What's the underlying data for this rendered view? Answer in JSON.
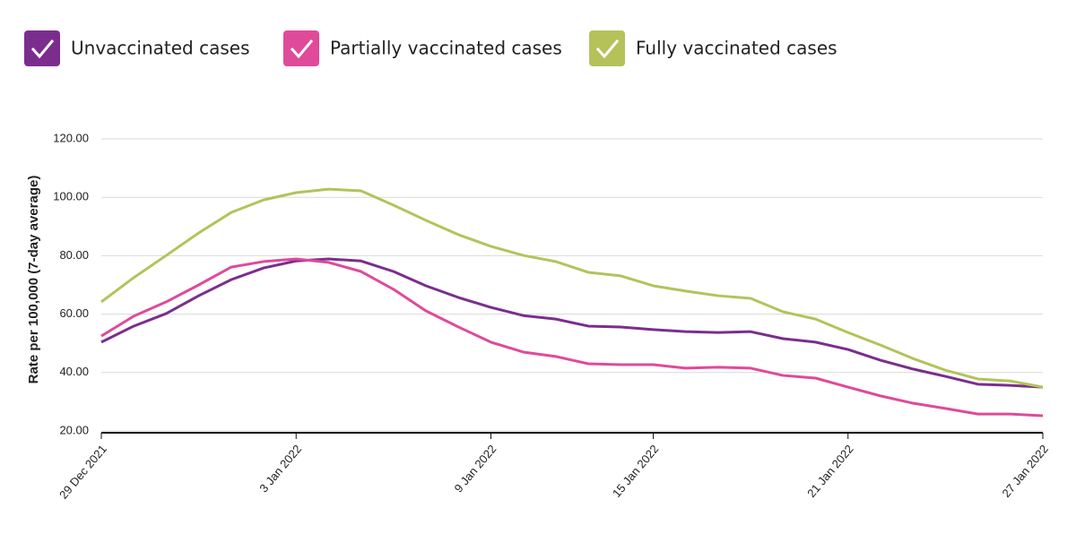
{
  "chart_data": {
    "type": "line",
    "y_label": "Rate per 100,000 (7-day average)",
    "categories": [
      "29 Dec 2021",
      null,
      null,
      null,
      null,
      null,
      "3 Jan 2022",
      null,
      null,
      null,
      null,
      null,
      "9 Jan 2022",
      null,
      null,
      null,
      null,
      "15 Jan 2022",
      null,
      null,
      null,
      null,
      null,
      "21 Jan 2022",
      null,
      null,
      null,
      null,
      null,
      "27 Jan 2022"
    ],
    "series": [
      {
        "name": "Unvaccinated cases",
        "color": "#7b2d8e",
        "values": [
          50.4,
          55.9,
          60.2,
          66.3,
          71.8,
          75.8,
          78.2,
          78.9,
          78.2,
          74.6,
          69.7,
          65.7,
          62.3,
          59.5,
          58.3,
          55.9,
          55.6,
          54.7,
          54.0,
          53.7,
          54.0,
          51.6,
          50.4,
          47.9,
          44.2,
          41.2,
          38.7,
          36.0,
          35.6,
          35.0
        ]
      },
      {
        "name": "Partially vaccinated cases",
        "color": "#df4a9a",
        "values": [
          52.5,
          59.3,
          64.2,
          70.0,
          76.1,
          78.0,
          78.9,
          77.7,
          74.6,
          68.5,
          61.1,
          55.6,
          50.4,
          47.0,
          45.5,
          43.0,
          42.7,
          42.7,
          41.5,
          41.8,
          41.5,
          39.0,
          38.1,
          35.0,
          32.0,
          29.5,
          27.7,
          25.8,
          25.8,
          25.2
        ]
      },
      {
        "name": "Fully vaccinated cases",
        "color": "#b5c25a",
        "values": [
          64.2,
          72.5,
          80.1,
          87.8,
          94.8,
          99.1,
          101.6,
          102.8,
          102.2,
          97.3,
          92.1,
          87.2,
          83.2,
          80.1,
          78.0,
          74.3,
          73.1,
          69.7,
          67.9,
          66.3,
          65.4,
          60.8,
          58.3,
          53.7,
          49.4,
          44.8,
          40.8,
          37.8,
          37.1,
          35.0
        ]
      }
    ],
    "ylim": [
      20,
      120
    ],
    "yticks": [
      {
        "value": 20,
        "label": "20.00"
      },
      {
        "value": 40,
        "label": "40.00"
      },
      {
        "value": 60,
        "label": "60.00"
      },
      {
        "value": 80,
        "label": "80.00"
      },
      {
        "value": 100,
        "label": "100.00"
      },
      {
        "value": 120,
        "label": "120.00"
      }
    ],
    "grid": true
  }
}
